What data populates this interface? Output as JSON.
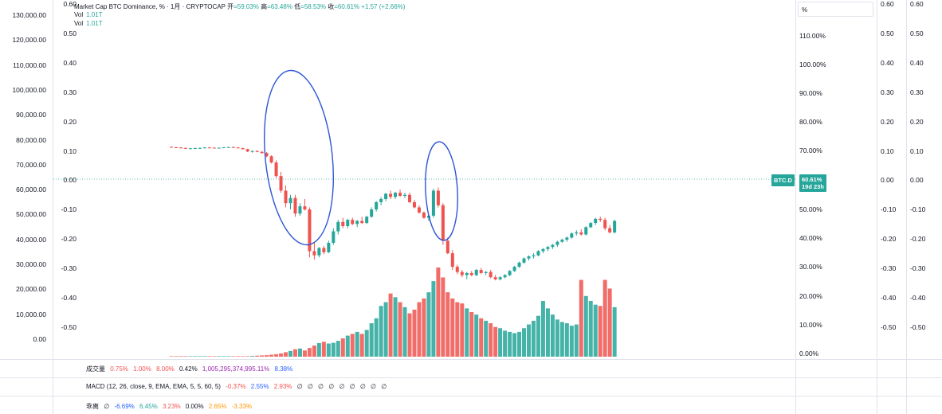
{
  "chart_data": {
    "type": "candlestick",
    "title_bar": {
      "symbol": "Market Cap BTC Dominance, % · 1月 · CRYPTOCAP",
      "open_label": "开",
      "open_value": "=59.03%",
      "high_label": "高",
      "high_value": "=63.48%",
      "low_label": "低",
      "low_value": "=58.53%",
      "close_label": "收",
      "close_value": "=60.61%",
      "change": "+1.57 (+2.66%)"
    },
    "vol_lines": [
      {
        "label": "Vol",
        "value": "1.01T"
      },
      {
        "label": "Vol",
        "value": "1.01T"
      }
    ],
    "left_axis_outer": [
      "130,000.00",
      "120,000.00",
      "110,000.00",
      "100,000.00",
      "90,000.00",
      "80,000.00",
      "70,000.00",
      "60,000.00",
      "50,000.00",
      "40,000.00",
      "30,000.00",
      "20,000.00",
      "10,000.00",
      "0.00"
    ],
    "left_axis_inner": [
      "0.60",
      "0.50",
      "0.40",
      "0.30",
      "0.20",
      "0.10",
      "0.00",
      "-0.10",
      "-0.20",
      "-0.30",
      "-0.40",
      "-0.50"
    ],
    "right_axis_pct": [
      "110.00%",
      "100.00%",
      "90.00%",
      "80.00%",
      "70.00%",
      "50.00%",
      "40.00%",
      "30.00%",
      "20.00%",
      "10.00%",
      "0.00%"
    ],
    "right_axis_a": [
      "0.60",
      "0.50",
      "0.40",
      "0.30",
      "0.20",
      "0.10",
      "0.00",
      "-0.10",
      "-0.20",
      "-0.30",
      "-0.40",
      "-0.50"
    ],
    "right_axis_b": [
      "0.60",
      "0.50",
      "0.40",
      "0.30",
      "0.20",
      "0.10",
      "0.00",
      "-0.10",
      "-0.20",
      "-0.30",
      "-0.40",
      "-0.50"
    ],
    "pct_box": "%",
    "badge_symbol": "BTC.D",
    "badge_value": "60.61%",
    "badge_time": "19d 23h",
    "y_range_pct": [
      0,
      120
    ],
    "candles": [
      [
        67.0,
        67.2,
        66.6,
        66.8
      ],
      [
        66.8,
        67.0,
        66.4,
        66.7
      ],
      [
        66.7,
        66.9,
        66.3,
        66.5
      ],
      [
        66.5,
        66.7,
        66.0,
        66.2
      ],
      [
        66.2,
        66.5,
        65.9,
        66.3
      ],
      [
        66.3,
        66.6,
        66.0,
        66.4
      ],
      [
        66.4,
        66.7,
        66.1,
        66.5
      ],
      [
        66.5,
        66.9,
        66.3,
        66.7
      ],
      [
        66.7,
        67.0,
        66.4,
        66.6
      ],
      [
        66.6,
        66.8,
        66.3,
        66.5
      ],
      [
        66.5,
        66.7,
        66.2,
        66.6
      ],
      [
        66.6,
        66.9,
        66.4,
        66.8
      ],
      [
        66.8,
        67.1,
        66.5,
        66.9
      ],
      [
        66.9,
        67.2,
        66.6,
        66.7
      ],
      [
        66.7,
        66.9,
        66.3,
        66.4
      ],
      [
        66.4,
        66.6,
        65.8,
        65.9
      ],
      [
        65.9,
        66.1,
        64.5,
        64.8
      ],
      [
        64.8,
        65.3,
        64.2,
        65.0
      ],
      [
        65.0,
        65.4,
        64.4,
        64.6
      ],
      [
        64.6,
        65.0,
        63.8,
        64.0
      ],
      [
        64.0,
        64.5,
        62.0,
        62.5
      ],
      [
        62.5,
        63.0,
        59.0,
        59.5
      ],
      [
        59.5,
        60.5,
        52.0,
        53.0
      ],
      [
        53.0,
        55.0,
        45.0,
        46.0
      ],
      [
        46.0,
        48.5,
        38.0,
        40.0
      ],
      [
        40.0,
        44.0,
        37.0,
        42.5
      ],
      [
        42.5,
        44.0,
        33.5,
        35.0
      ],
      [
        35.0,
        40.0,
        34.0,
        38.5
      ],
      [
        38.5,
        42.0,
        36.5,
        37.0
      ],
      [
        37.0,
        38.0,
        14.0,
        17.0
      ],
      [
        17.0,
        21.0,
        13.0,
        15.0
      ],
      [
        15.0,
        19.0,
        14.0,
        18.5
      ],
      [
        18.5,
        19.5,
        15.5,
        16.5
      ],
      [
        16.5,
        22.0,
        16.0,
        21.0
      ],
      [
        21.0,
        28.0,
        20.0,
        26.5
      ],
      [
        26.5,
        32.0,
        25.0,
        31.0
      ],
      [
        31.0,
        33.0,
        28.0,
        29.0
      ],
      [
        29.0,
        32.5,
        28.0,
        32.0
      ],
      [
        32.0,
        33.0,
        29.5,
        30.0
      ],
      [
        30.0,
        32.0,
        28.5,
        31.5
      ],
      [
        31.5,
        33.5,
        30.0,
        30.5
      ],
      [
        30.5,
        34.0,
        30.0,
        33.5
      ],
      [
        33.5,
        38.0,
        33.0,
        37.0
      ],
      [
        37.0,
        41.0,
        36.0,
        40.5
      ],
      [
        40.5,
        43.0,
        39.0,
        42.0
      ],
      [
        42.0,
        45.0,
        41.0,
        44.5
      ],
      [
        44.5,
        46.0,
        42.0,
        43.0
      ],
      [
        43.0,
        45.5,
        42.0,
        45.0
      ],
      [
        45.0,
        46.5,
        43.0,
        43.5
      ],
      [
        43.5,
        45.0,
        42.5,
        44.0
      ],
      [
        44.0,
        45.0,
        40.0,
        40.5
      ],
      [
        40.5,
        41.5,
        37.5,
        38.0
      ],
      [
        38.0,
        39.0,
        35.0,
        35.5
      ],
      [
        35.5,
        36.0,
        32.5,
        33.0
      ],
      [
        33.0,
        34.5,
        31.5,
        34.0
      ],
      [
        34.0,
        47.0,
        33.0,
        46.0
      ],
      [
        46.0,
        47.5,
        38.0,
        39.0
      ],
      [
        39.0,
        40.0,
        20.0,
        22.0
      ],
      [
        22.0,
        23.5,
        15.5,
        16.0
      ],
      [
        16.0,
        17.5,
        8.0,
        9.5
      ],
      [
        9.5,
        10.5,
        6.0,
        7.0
      ],
      [
        7.0,
        8.0,
        4.5,
        5.5
      ],
      [
        5.5,
        7.0,
        3.5,
        6.5
      ],
      [
        6.5,
        7.5,
        5.0,
        5.5
      ],
      [
        5.5,
        8.5,
        5.0,
        8.0
      ],
      [
        8.0,
        9.0,
        6.0,
        6.5
      ],
      [
        6.5,
        7.5,
        5.5,
        7.0
      ],
      [
        7.0,
        8.0,
        4.0,
        4.5
      ],
      [
        4.5,
        5.5,
        3.0,
        3.5
      ],
      [
        3.5,
        5.0,
        3.0,
        4.5
      ],
      [
        4.5,
        6.0,
        4.0,
        5.5
      ],
      [
        5.5,
        8.0,
        5.0,
        7.5
      ],
      [
        7.5,
        10.0,
        7.0,
        9.5
      ],
      [
        9.5,
        12.0,
        9.0,
        11.5
      ],
      [
        11.5,
        14.0,
        11.0,
        13.5
      ],
      [
        13.5,
        15.0,
        12.5,
        14.5
      ],
      [
        14.5,
        16.0,
        13.5,
        15.0
      ],
      [
        15.0,
        17.5,
        14.5,
        17.0
      ],
      [
        17.0,
        18.5,
        16.0,
        18.0
      ],
      [
        18.0,
        19.5,
        17.0,
        19.0
      ],
      [
        19.0,
        20.5,
        18.0,
        20.0
      ],
      [
        20.0,
        22.0,
        19.0,
        21.5
      ],
      [
        21.5,
        23.0,
        21.0,
        22.5
      ],
      [
        22.5,
        24.0,
        21.5,
        23.5
      ],
      [
        23.5,
        26.0,
        23.0,
        25.5
      ],
      [
        25.5,
        27.0,
        24.5,
        26.0
      ],
      [
        26.0,
        27.5,
        24.5,
        25.0
      ],
      [
        25.0,
        29.0,
        24.5,
        28.5
      ],
      [
        28.5,
        31.0,
        28.0,
        30.5
      ],
      [
        30.5,
        33.0,
        29.5,
        32.5
      ],
      [
        32.5,
        33.5,
        31.0,
        32.0
      ],
      [
        32.0,
        33.0,
        27.0,
        28.0
      ],
      [
        28.0,
        29.5,
        25.5,
        26.0
      ],
      [
        26.0,
        32.0,
        25.5,
        31.5
      ]
    ],
    "volume_pct": [
      0.05,
      0.05,
      0.05,
      0.05,
      0.05,
      0.05,
      0.05,
      0.05,
      0.05,
      0.05,
      0.05,
      0.05,
      0.05,
      0.05,
      0.05,
      0.1,
      0.2,
      0.3,
      0.4,
      0.5,
      0.6,
      0.8,
      1.0,
      1.3,
      1.8,
      2.3,
      3.0,
      3.3,
      2.5,
      3.5,
      4.5,
      5.5,
      6.0,
      5.3,
      5.6,
      6.4,
      7.4,
      8.5,
      9.2,
      10.0,
      9.2,
      10.8,
      13.5,
      15.5,
      20.5,
      22.0,
      25.5,
      24.0,
      22.0,
      20.0,
      17.5,
      19.0,
      22.0,
      23.5,
      26.0,
      30.5,
      36.0,
      32.0,
      26.0,
      23.5,
      22.0,
      21.5,
      19.5,
      18.0,
      17.0,
      15.5,
      14.5,
      13.5,
      12.0,
      11.5,
      10.5,
      10.0,
      9.5,
      10.0,
      11.5,
      13.0,
      14.5,
      16.5,
      22.5,
      19.5,
      17.0,
      15.0,
      14.0,
      13.5,
      12.5,
      13.0,
      31.0,
      24.5,
      22.5,
      21.0,
      20.5,
      31.0,
      27.5,
      20.0
    ],
    "volume_max_pct": 36,
    "indicators": {
      "volume": {
        "label": "成交量",
        "values": [
          "0.75%",
          "1.00%",
          "8.00%",
          "0.42%",
          "1,005,295,374,995.11%",
          "8.38%"
        ]
      },
      "macd": {
        "label": "MACD (12, 26, close, 9, EMA, EMA, 5, 5, 60, 5)",
        "values": [
          "-0.37%",
          "2.55%",
          "2.93%"
        ],
        "empty_marks": [
          "∅",
          "∅",
          "∅",
          "∅",
          "∅",
          "∅",
          "∅",
          "∅",
          "∅"
        ]
      },
      "divergence": {
        "label": "乖离",
        "values": [
          "∅",
          "-6.69%",
          "6.45%",
          "3.23%",
          "0.00%",
          "2.65%",
          "-3.33%"
        ]
      }
    },
    "colors": {
      "up": "#26a69a",
      "down": "#ef5350",
      "annotation": "#2d55d6",
      "grid": "#e0e3eb",
      "price_line": "#26a69a"
    }
  }
}
